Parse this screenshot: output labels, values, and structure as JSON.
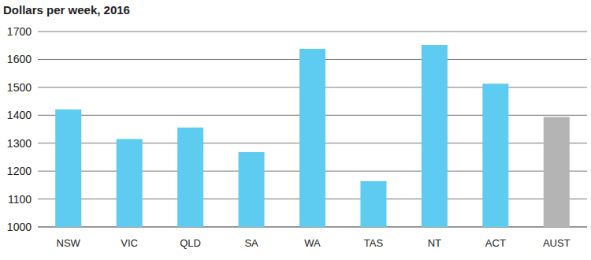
{
  "chart_data": {
    "type": "bar",
    "title": "Dollars per week, 2016",
    "categories": [
      "NSW",
      "VIC",
      "QLD",
      "SA",
      "WA",
      "TAS",
      "NT",
      "ACT",
      "AUST"
    ],
    "values": [
      1421,
      1315,
      1356,
      1268,
      1638,
      1164,
      1652,
      1513,
      1394
    ],
    "colors": [
      "#5ecbf0",
      "#5ecbf0",
      "#5ecbf0",
      "#5ecbf0",
      "#5ecbf0",
      "#5ecbf0",
      "#5ecbf0",
      "#5ecbf0",
      "#b4b4b4"
    ],
    "ylim": [
      1000,
      1700
    ],
    "yticks": [
      1000,
      1100,
      1200,
      1300,
      1400,
      1500,
      1600,
      1700
    ],
    "grid": true
  }
}
